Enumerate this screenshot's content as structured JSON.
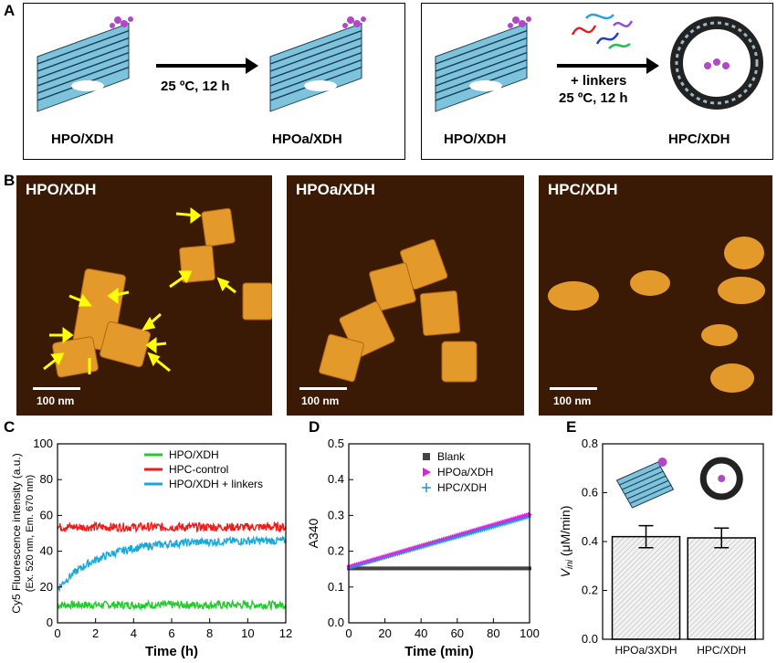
{
  "panels": {
    "a": "A",
    "b": "B",
    "c": "C",
    "d": "D",
    "e": "E"
  },
  "panelA": {
    "left": {
      "start_label": "HPO/XDH",
      "end_label": "HPOa/XDH",
      "condition": "25 ºC, 12 h"
    },
    "right": {
      "start_label": "HPO/XDH",
      "end_label": "HPC/XDH",
      "condition_line1": "+ linkers",
      "condition_line2": "25 ºC, 12 h"
    }
  },
  "panelB": {
    "images": [
      {
        "title": "HPO/XDH",
        "scale": "100 nm"
      },
      {
        "title": "HPOa/XDH",
        "scale": "100 nm"
      },
      {
        "title": "HPC/XDH",
        "scale": "100 nm"
      }
    ],
    "colors": {
      "background": "#3a1a05",
      "origami": "#e49a2a",
      "arrow": "#ffff00"
    }
  },
  "chart_data": [
    {
      "type": "line",
      "panel": "C",
      "xlabel": "Time (h)",
      "ylabel": "Cy5 Fluorescence intensity (a.u.)",
      "ylabel2": "(Ex. 520 nm, Em. 670 nm)",
      "xlim": [
        0,
        12
      ],
      "ylim": [
        0,
        100
      ],
      "xticks": [
        0,
        2,
        4,
        6,
        8,
        10,
        12
      ],
      "yticks": [
        0,
        20,
        40,
        60,
        80,
        100
      ],
      "series": [
        {
          "name": "HPO/XDH",
          "color": "#1fcc2a",
          "kind": "flat",
          "level": 10,
          "noise": 2.2
        },
        {
          "name": "HPC-control",
          "color": "#ee1c1c",
          "kind": "flat",
          "level": 53.5,
          "noise": 2.4
        },
        {
          "name": "HPO/XDH + linkers",
          "color": "#1aa8d8",
          "kind": "rise",
          "start": 19,
          "end": 46,
          "tau": 2.2,
          "noise": 2.2
        }
      ]
    },
    {
      "type": "scatter",
      "panel": "D",
      "xlabel": "Time (min)",
      "ylabel": "A340",
      "xlim": [
        0,
        100
      ],
      "ylim": [
        0.0,
        0.5
      ],
      "xticks": [
        0,
        20,
        40,
        60,
        80,
        100
      ],
      "yticks": [
        "0.0",
        "0.1",
        "0.2",
        "0.3",
        "0.4",
        "0.5"
      ],
      "series": [
        {
          "name": "Blank",
          "color": "#444444",
          "marker": "square",
          "y0": 0.152,
          "y1": 0.152
        },
        {
          "name": "HPOa/XDH",
          "color": "#e020e0",
          "marker": "triangle",
          "y0": 0.155,
          "y1": 0.302
        },
        {
          "name": "HPC/XDH",
          "color": "#2a8fe0",
          "marker": "plus",
          "y0": 0.153,
          "y1": 0.296
        }
      ]
    },
    {
      "type": "bar",
      "panel": "E",
      "ylabel": "V_ini (μM/min)",
      "ylabel_V": "V",
      "ylabel_sub": "ini",
      "ylabel_rest": " (μM/min)",
      "ylim": [
        0.0,
        0.8
      ],
      "yticks": [
        "0.0",
        "0.2",
        "0.4",
        "0.6",
        "0.8"
      ],
      "categories": [
        "HPOa/3XDH",
        "HPC/XDH"
      ],
      "values": [
        0.42,
        0.415
      ],
      "errors": [
        0.045,
        0.04
      ]
    }
  ]
}
